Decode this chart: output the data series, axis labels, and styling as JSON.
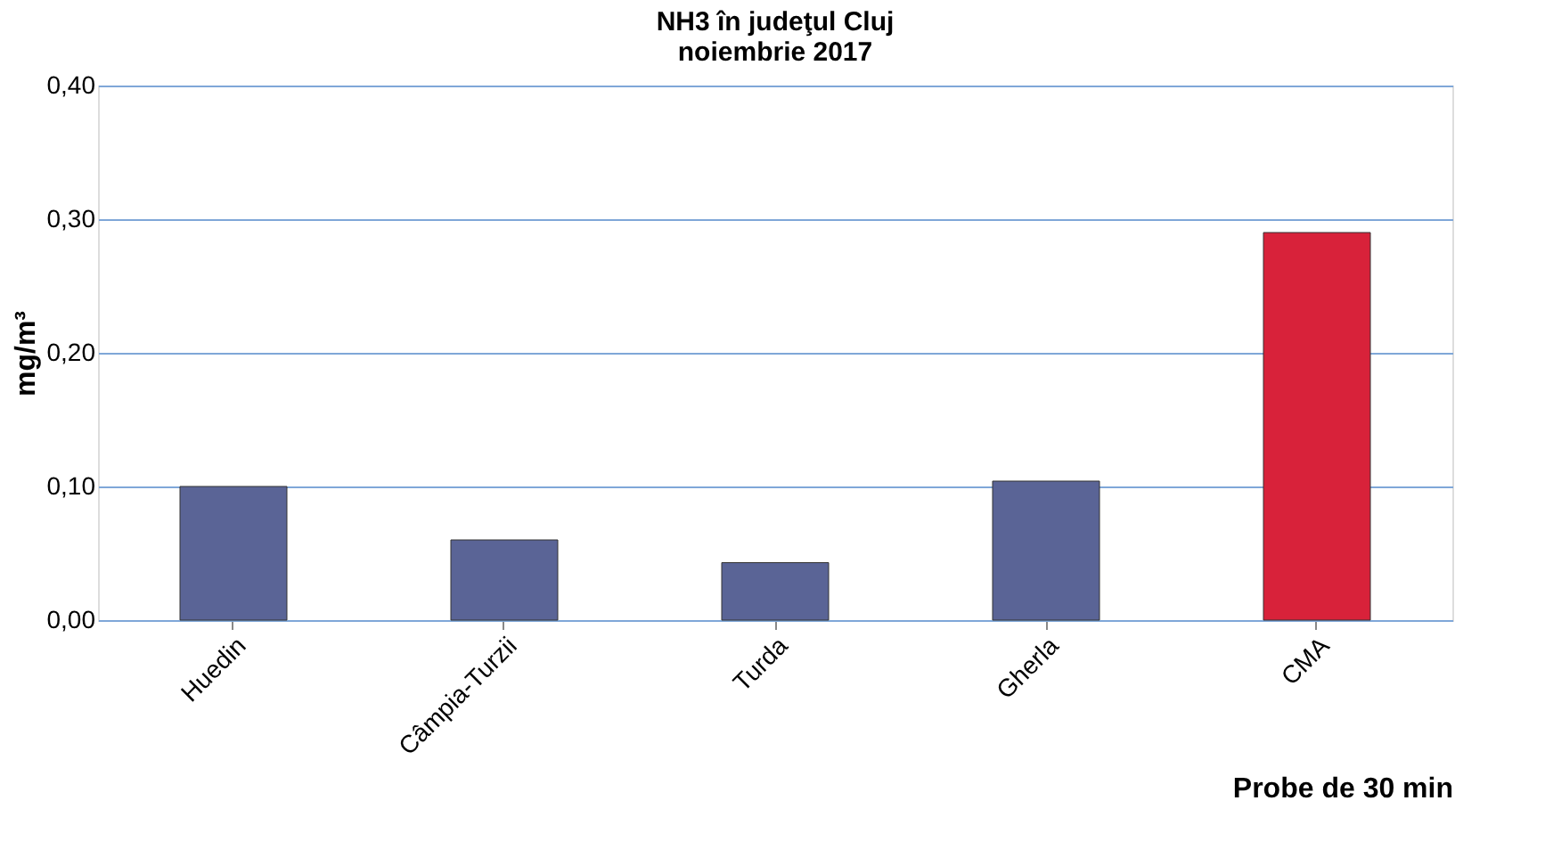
{
  "chart_data": {
    "type": "bar",
    "title": [
      "NH3 în judeţul Cluj",
      "noiembrie 2017"
    ],
    "xlabel": "Probe de 30 min",
    "ylabel": "mg/m³",
    "categories": [
      "Huedin",
      "Câmpia-Turzii",
      "Turda",
      "Gherla",
      "CMA"
    ],
    "values": [
      0.1,
      0.06,
      0.043,
      0.104,
      0.29
    ],
    "colors": [
      "#5a6496",
      "#5a6496",
      "#5a6496",
      "#5a6496",
      "#d8223a"
    ],
    "ylim": [
      0,
      0.4
    ],
    "yticks": [
      {
        "value": 0,
        "label": "0,00"
      },
      {
        "value": 0.1,
        "label": "0,10"
      },
      {
        "value": 0.2,
        "label": "0,20"
      },
      {
        "value": 0.3,
        "label": "0,30"
      },
      {
        "value": 0.4,
        "label": "0,40"
      }
    ],
    "grid": "y"
  }
}
